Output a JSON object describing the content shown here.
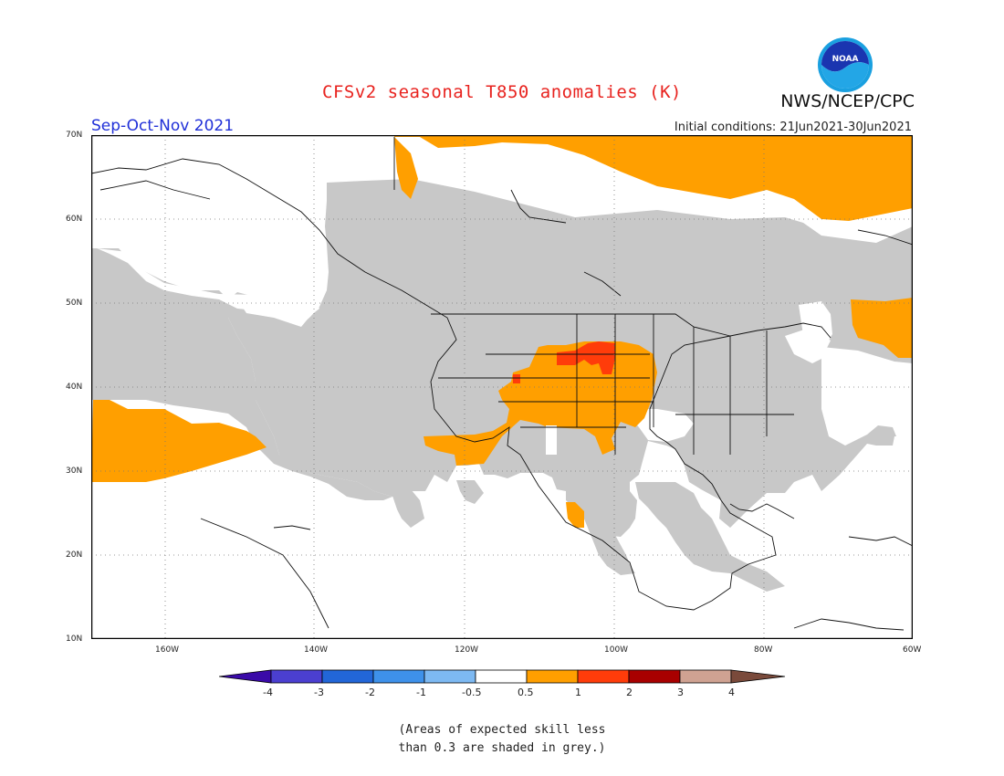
{
  "title": "CFSv2 seasonal T850 anomalies (K)",
  "agency": "NWS/NCEP/CPC",
  "season": "Sep-Oct-Nov 2021",
  "initial_conditions": "Initial conditions: 21Jun2021-30Jun2021",
  "logo_text": "NOAA",
  "latitude_labels": [
    "70N",
    "60N",
    "50N",
    "40N",
    "30N",
    "20N",
    "10N"
  ],
  "longitude_labels": [
    "160W",
    "140W",
    "120W",
    "100W",
    "80W",
    "60W"
  ],
  "colorbar": {
    "ticks": [
      "-4",
      "-3",
      "-2",
      "-1",
      "-0.5",
      "0.5",
      "1",
      "2",
      "3",
      "4"
    ],
    "colors": [
      "#3a0aa8",
      "#4b3fd0",
      "#2266d8",
      "#3e91ea",
      "#7db9f2",
      "#ffffff",
      "#ff9f00",
      "#ff3c0a",
      "#a80000",
      "#cfa292",
      "#7a4a3b"
    ]
  },
  "legend_categories": {
    "no_skill": "#c8c8c8",
    "warm_0_5_to_1": "#ff9f00",
    "warm_1_to_2": "#ff3c0a"
  },
  "note": [
    "(Areas of expected skill less",
    "than 0.3 are shaded in grey.)"
  ]
}
